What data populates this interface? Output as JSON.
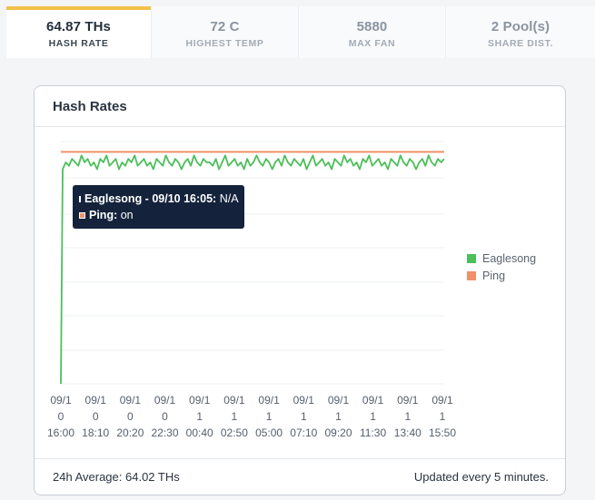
{
  "stats": [
    {
      "value": "64.87 THs",
      "label": "HASH RATE",
      "active": true
    },
    {
      "value": "72 C",
      "label": "HIGHEST TEMP",
      "active": false
    },
    {
      "value": "5880",
      "label": "MAX FAN",
      "active": false
    },
    {
      "value": "2 Pool(s)",
      "label": "SHARE DIST.",
      "active": false
    }
  ],
  "card": {
    "title": "Hash Rates",
    "footer_left": "24h Average: 64.02 THs",
    "footer_right": "Updated every 5 minutes."
  },
  "tooltip": {
    "series_line_label": "Eaglesong - 09/10 16:05:",
    "series_line_value": "N/A",
    "ping_label": "Ping:",
    "ping_value": "on"
  },
  "colors": {
    "eaglesong": "#4cbf5a",
    "ping": "#f0916a",
    "active_tab_accent": "#f2c14a"
  },
  "chart_data": {
    "type": "line",
    "x_tick_labels": [
      [
        "09/1",
        "0",
        "16:00"
      ],
      [
        "09/1",
        "0",
        "18:10"
      ],
      [
        "09/1",
        "0",
        "20:20"
      ],
      [
        "09/1",
        "0",
        "22:30"
      ],
      [
        "09/1",
        "1",
        "00:40"
      ],
      [
        "09/1",
        "1",
        "02:50"
      ],
      [
        "09/1",
        "1",
        "05:00"
      ],
      [
        "09/1",
        "1",
        "07:10"
      ],
      [
        "09/1",
        "1",
        "09:20"
      ],
      [
        "09/1",
        "1",
        "11:30"
      ],
      [
        "09/1",
        "1",
        "13:40"
      ],
      [
        "09/1",
        "1",
        "15:50"
      ]
    ],
    "legend_position": "right",
    "grid": true,
    "series": [
      {
        "name": "Eaglesong",
        "values": [
          0,
          62,
          64,
          63,
          65,
          64,
          63,
          66,
          64,
          65,
          63,
          64,
          62,
          65,
          64,
          66,
          63,
          64,
          65,
          62,
          64,
          63,
          65,
          64,
          66,
          63,
          64,
          65,
          63,
          64,
          62,
          65,
          64,
          63,
          66,
          64,
          63,
          65,
          64,
          62,
          64,
          65,
          63,
          66,
          64,
          63,
          65,
          64,
          64,
          63,
          65,
          62,
          64,
          66,
          63,
          64,
          65,
          63,
          64,
          62,
          65,
          63,
          64,
          66,
          64,
          63,
          65,
          64,
          62,
          64,
          65,
          63,
          66,
          64,
          63,
          65,
          64,
          63,
          65,
          62,
          64,
          66,
          63,
          64,
          65,
          63,
          64,
          62,
          65,
          64,
          63,
          66,
          64,
          65,
          63,
          64,
          62,
          65,
          64,
          66,
          63,
          64,
          65,
          63,
          64,
          62,
          65,
          64,
          63,
          66,
          64,
          63,
          65,
          64,
          62,
          64,
          65,
          63,
          66,
          64,
          63,
          65,
          64,
          65
        ]
      },
      {
        "name": "Ping",
        "values": [
          67,
          67
        ]
      }
    ]
  }
}
